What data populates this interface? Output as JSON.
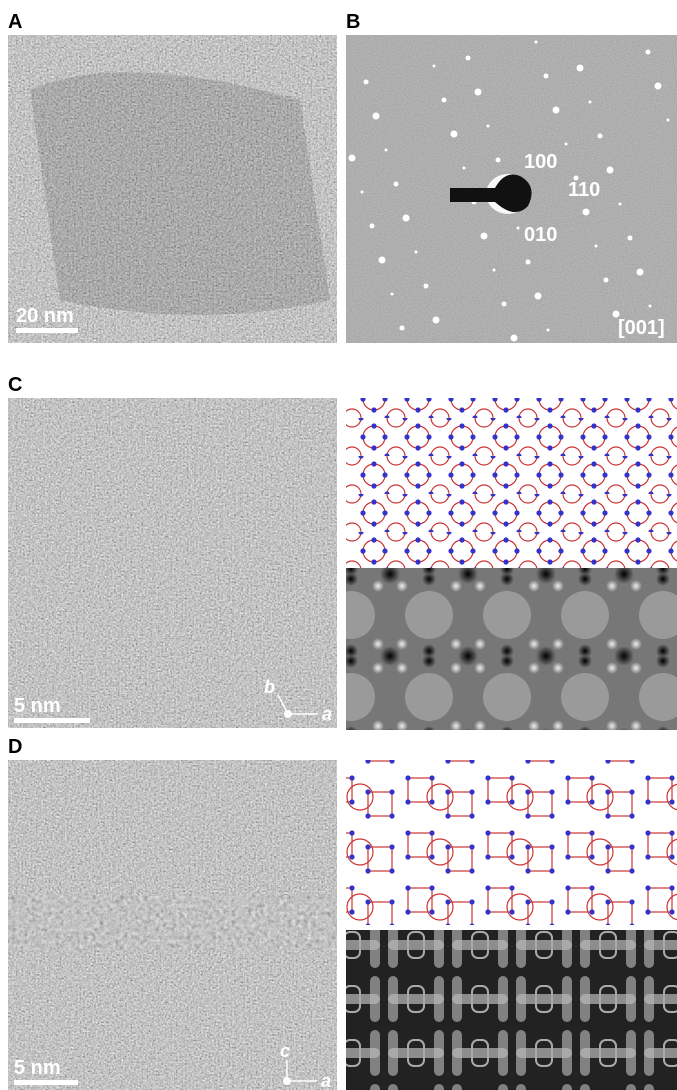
{
  "panels": [
    {
      "label": "A",
      "scale_bar": "20 nm"
    },
    {
      "label": "B",
      "indices": [
        "100",
        "110",
        "010"
      ],
      "zone_axis": "[001]"
    },
    {
      "label": "C",
      "scale_bar": "5 nm",
      "axes": [
        "b",
        "a"
      ]
    },
    {
      "label": "D",
      "scale_bar": "5 nm",
      "axes": [
        "c",
        "a"
      ]
    }
  ]
}
